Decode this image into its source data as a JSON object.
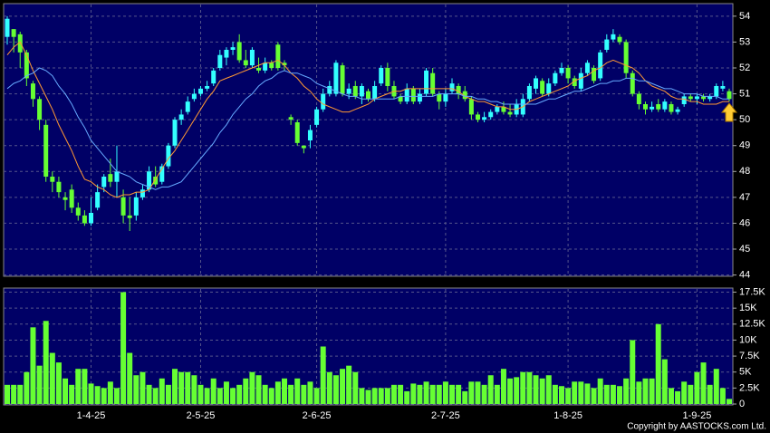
{
  "chart_data": [
    {
      "type": "candlestick",
      "up_color": "#33ffff",
      "down_color": "#66ff33",
      "grid": true,
      "ylim": [
        43.95,
        54.45
      ],
      "yticks": [
        44,
        45,
        46,
        47,
        48,
        49,
        50,
        51,
        52,
        53,
        54
      ],
      "open": [
        53.2,
        53.5,
        53.3,
        52.6,
        51.4,
        50.8,
        49.8,
        47.8,
        47.6,
        47.0,
        47.3,
        46.6,
        46.3,
        46.0,
        46.6,
        47.4,
        47.9,
        47.6,
        47.0,
        46.3,
        46.3,
        47.0,
        47.3,
        47.8,
        47.6,
        48.2,
        49.0,
        50.0,
        50.3,
        50.8,
        51.0,
        51.2,
        51.4,
        52.0,
        52.4,
        52.7,
        53.0,
        52.3,
        52.1,
        52.0,
        51.9,
        52.2,
        52.9,
        52.2,
        50.1,
        49.9,
        49.0,
        49.2,
        49.8,
        50.4,
        51.0,
        51.0,
        52.1,
        51.0,
        51.3,
        50.9,
        51.1,
        50.8,
        51.4,
        52.0,
        51.3,
        50.9,
        50.7,
        51.2,
        50.7,
        51.0,
        51.8,
        51.0,
        50.7,
        51.1,
        51.3,
        51.1,
        50.8,
        50.2,
        50.0,
        50.1,
        50.3,
        50.5,
        50.3,
        50.2,
        50.2,
        50.8,
        51.2,
        51.5,
        51.0,
        51.4,
        51.8,
        52.0,
        51.6,
        51.2,
        51.8,
        52.0,
        51.6,
        52.7,
        53.1,
        53.2,
        53.0,
        51.8,
        51.0,
        50.6,
        50.4,
        50.6,
        50.4,
        50.6,
        50.3,
        50.6,
        50.9,
        50.8,
        50.9,
        50.8,
        50.9,
        51.2,
        51.1
      ],
      "close": [
        53.9,
        53.2,
        52.6,
        51.6,
        50.8,
        50.0,
        47.8,
        47.6,
        47.2,
        46.9,
        46.6,
        46.3,
        46.0,
        46.4,
        47.2,
        47.8,
        47.6,
        48.0,
        46.3,
        46.2,
        47.0,
        47.3,
        48.0,
        47.5,
        48.2,
        49.0,
        50.0,
        50.2,
        50.7,
        51.0,
        51.2,
        51.3,
        51.9,
        52.5,
        52.7,
        52.8,
        52.3,
        52.1,
        52.7,
        51.9,
        52.2,
        52.0,
        52.0,
        52.1,
        50.0,
        49.1,
        48.9,
        49.6,
        50.4,
        51.0,
        51.3,
        52.2,
        51.0,
        51.2,
        50.9,
        51.3,
        50.8,
        51.3,
        52.0,
        51.3,
        50.9,
        50.7,
        51.2,
        50.7,
        51.0,
        51.9,
        51.0,
        50.7,
        51.0,
        51.4,
        51.0,
        50.8,
        50.2,
        50.0,
        50.1,
        50.3,
        50.5,
        50.3,
        50.2,
        50.6,
        50.8,
        51.3,
        51.6,
        51.0,
        51.4,
        51.8,
        52.0,
        51.6,
        51.3,
        51.8,
        52.2,
        51.5,
        52.6,
        53.1,
        53.3,
        53.0,
        51.8,
        51.0,
        50.6,
        50.4,
        50.5,
        50.4,
        50.7,
        50.3,
        50.4,
        50.9,
        50.8,
        50.9,
        50.8,
        50.9,
        51.3,
        51.3,
        50.8
      ],
      "high": [
        54.0,
        53.5,
        53.4,
        52.7,
        51.5,
        50.9,
        50.0,
        48.0,
        47.8,
        47.2,
        47.5,
        46.8,
        46.5,
        47.0,
        47.5,
        47.9,
        48.5,
        49.0,
        47.3,
        47.0,
        47.2,
        47.5,
        48.2,
        48.2,
        48.3,
        49.1,
        50.1,
        50.4,
        50.9,
        51.2,
        51.3,
        51.5,
        52.0,
        52.7,
        52.8,
        53.0,
        53.3,
        52.7,
        52.8,
        52.4,
        52.4,
        52.3,
        53.0,
        52.3,
        50.2,
        50.0,
        49.0,
        49.8,
        50.5,
        51.2,
        51.5,
        52.3,
        52.2,
        51.4,
        51.5,
        51.4,
        51.2,
        51.5,
        52.1,
        52.2,
        51.5,
        51.0,
        51.4,
        51.3,
        51.2,
        52.0,
        52.0,
        51.1,
        51.2,
        51.6,
        51.4,
        51.3,
        50.9,
        50.3,
        50.3,
        50.4,
        50.6,
        50.7,
        50.6,
        50.8,
        51.0,
        51.4,
        51.7,
        51.6,
        51.6,
        51.9,
        52.2,
        52.1,
        51.7,
        52.0,
        52.3,
        52.1,
        52.7,
        53.3,
        53.5,
        53.3,
        53.1,
        51.9,
        51.1,
        50.7,
        50.7,
        50.8,
        50.8,
        50.7,
        50.5,
        51.0,
        51.0,
        51.0,
        51.0,
        51.0,
        51.4,
        51.5,
        51.2
      ],
      "low": [
        52.9,
        52.6,
        52.0,
        51.3,
        50.5,
        49.6,
        47.6,
        47.2,
        47.0,
        46.5,
        46.4,
        46.1,
        45.9,
        45.9,
        46.5,
        47.2,
        47.4,
        47.0,
        46.0,
        45.7,
        46.1,
        46.9,
        47.2,
        47.4,
        47.5,
        48.1,
        48.9,
        49.8,
        50.2,
        50.7,
        50.9,
        51.1,
        51.3,
        51.9,
        52.1,
        52.5,
        52.2,
        52.0,
        52.0,
        51.8,
        51.8,
        51.9,
        51.9,
        51.9,
        49.8,
        49.0,
        48.7,
        48.9,
        49.7,
        50.3,
        50.9,
        50.9,
        50.9,
        50.8,
        50.8,
        50.6,
        50.7,
        50.7,
        51.3,
        51.1,
        50.8,
        50.6,
        50.6,
        50.6,
        50.6,
        50.9,
        50.9,
        50.4,
        50.5,
        51.0,
        50.8,
        50.7,
        50.0,
        49.9,
        49.9,
        50.0,
        50.2,
        50.2,
        50.1,
        50.1,
        50.1,
        50.7,
        51.0,
        50.9,
        50.9,
        51.3,
        51.7,
        51.4,
        51.2,
        51.1,
        51.7,
        51.4,
        51.5,
        52.6,
        53.0,
        52.9,
        51.6,
        50.9,
        50.4,
        50.2,
        50.3,
        50.3,
        50.3,
        50.2,
        50.2,
        50.5,
        50.7,
        50.6,
        50.7,
        50.7,
        50.8,
        51.1,
        50.7
      ],
      "lines": [
        {
          "color": "#ff9933",
          "values": [
            52.5,
            52.8,
            53.0,
            52.5,
            51.9,
            51.4,
            50.9,
            50.4,
            49.8,
            49.3,
            48.8,
            48.2,
            47.7,
            47.6,
            47.4,
            47.3,
            47.1,
            47.0,
            47.1,
            47.1,
            47.2,
            47.2,
            47.3,
            47.7,
            48.1,
            48.5,
            48.8,
            49.2,
            49.6,
            50.0,
            50.4,
            50.8,
            51.1,
            51.5,
            51.6,
            51.7,
            51.8,
            51.9,
            52.0,
            52.1,
            52.2,
            52.2,
            52.3,
            52.1,
            51.8,
            51.6,
            51.3,
            51.1,
            50.8,
            50.6,
            50.5,
            50.4,
            50.3,
            50.3,
            50.4,
            50.5,
            50.6,
            50.8,
            50.9,
            51.0,
            51.1,
            51.1,
            51.2,
            51.2,
            51.2,
            51.2,
            51.2,
            51.2,
            51.2,
            51.2,
            51.1,
            50.9,
            50.8,
            50.7,
            50.7,
            50.6,
            50.5,
            50.5,
            50.4,
            50.4,
            50.5,
            50.7,
            50.8,
            50.9,
            51.0,
            51.1,
            51.2,
            51.3,
            51.5,
            51.6,
            51.7,
            51.9,
            52.0,
            52.2,
            52.3,
            52.2,
            52.1,
            52.0,
            51.8,
            51.5,
            51.3,
            51.2,
            51.1,
            50.9,
            50.8,
            50.8,
            50.7,
            50.7,
            50.6,
            50.6,
            50.6,
            50.7,
            50.7
          ]
        },
        {
          "color": "#66aaff",
          "values": [
            51.2,
            51.4,
            51.5,
            51.7,
            51.8,
            52.0,
            51.9,
            51.7,
            51.3,
            51.0,
            50.6,
            50.1,
            49.7,
            49.2,
            48.9,
            48.6,
            48.3,
            48.0,
            47.9,
            47.8,
            47.6,
            47.5,
            47.4,
            47.3,
            47.4,
            47.4,
            47.5,
            47.6,
            47.9,
            48.2,
            48.5,
            48.8,
            49.1,
            49.5,
            49.8,
            50.2,
            50.5,
            50.8,
            51.0,
            51.3,
            51.5,
            51.6,
            51.8,
            51.9,
            51.8,
            51.8,
            51.7,
            51.6,
            51.4,
            51.3,
            51.2,
            51.1,
            51.0,
            50.9,
            50.9,
            50.8,
            50.8,
            50.8,
            50.8,
            50.8,
            50.8,
            50.9,
            50.9,
            50.9,
            50.9,
            50.9,
            50.9,
            51.0,
            51.0,
            51.0,
            51.0,
            50.9,
            50.9,
            50.8,
            50.8,
            50.7,
            50.7,
            50.6,
            50.6,
            50.6,
            50.6,
            50.6,
            50.6,
            50.7,
            50.8,
            50.8,
            50.9,
            51.0,
            51.1,
            51.1,
            51.2,
            51.3,
            51.4,
            51.4,
            51.5,
            51.5,
            51.6,
            51.6,
            51.5,
            51.5,
            51.4,
            51.3,
            51.2,
            51.2,
            51.1,
            51.0,
            51.0,
            51.0,
            50.9,
            50.9,
            50.9,
            50.8,
            50.8
          ]
        }
      ]
    },
    {
      "type": "bar",
      "color": "#66ff33",
      "grid": true,
      "ylim": [
        0,
        18000
      ],
      "yticks": [
        0,
        {
          "value": 2500,
          "label": "2.5K"
        },
        {
          "value": 5000,
          "label": "5K"
        },
        {
          "value": 7500,
          "label": "7.5K"
        },
        {
          "value": 10000,
          "label": "10K"
        },
        {
          "value": 12500,
          "label": "12.5K"
        },
        {
          "value": 15000,
          "label": "15K"
        },
        {
          "value": 17500,
          "label": "17.5K"
        }
      ],
      "categories": [
        null,
        null,
        null,
        null,
        null,
        null,
        null,
        null,
        null,
        null,
        null,
        null,
        null,
        "1-4-25",
        null,
        null,
        null,
        null,
        null,
        null,
        null,
        null,
        null,
        null,
        null,
        null,
        null,
        null,
        null,
        null,
        "2-5-25",
        null,
        null,
        null,
        null,
        null,
        null,
        null,
        null,
        null,
        null,
        null,
        null,
        null,
        null,
        null,
        null,
        null,
        "2-6-25",
        null,
        null,
        null,
        null,
        null,
        null,
        null,
        null,
        null,
        null,
        null,
        null,
        null,
        null,
        null,
        null,
        null,
        null,
        null,
        "2-7-25",
        null,
        null,
        null,
        null,
        null,
        null,
        null,
        null,
        null,
        null,
        null,
        null,
        null,
        null,
        null,
        null,
        null,
        null,
        "1-8-25",
        null,
        null,
        null,
        null,
        null,
        null,
        null,
        null,
        null,
        null,
        null,
        null,
        null,
        null,
        null,
        null,
        null,
        null,
        null,
        "1-9-25",
        null,
        null,
        null,
        null,
        null
      ],
      "values": [
        3000,
        3000,
        3000,
        5000,
        12000,
        6000,
        13000,
        8000,
        6500,
        4000,
        3000,
        5500,
        5500,
        3200,
        2800,
        2500,
        3500,
        2500,
        17500,
        8000,
        4500,
        5000,
        3000,
        2500,
        4000,
        3000,
        5500,
        5000,
        5000,
        4500,
        3000,
        2500,
        4000,
        2500,
        3500,
        2500,
        3000,
        4000,
        5000,
        4500,
        3000,
        2500,
        3500,
        4000,
        3000,
        4000,
        3000,
        3500,
        2500,
        9000,
        5000,
        4500,
        5500,
        6000,
        5000,
        2500,
        2200,
        2500,
        2500,
        2500,
        3000,
        3000,
        2000,
        3200,
        3000,
        3500,
        3000,
        3000,
        3500,
        3000,
        3000,
        2000,
        3500,
        3500,
        3000,
        4500,
        3000,
        5500,
        4000,
        4200,
        5000,
        5000,
        4500,
        4000,
        4500,
        3000,
        2800,
        2500,
        3500,
        3500,
        3200,
        2500,
        4000,
        3000,
        3000,
        2800,
        4000,
        10000,
        3500,
        4000,
        4000,
        12500,
        7000,
        2500,
        2000,
        3500,
        3000,
        5000,
        6500,
        3000,
        5500,
        2500,
        800
      ]
    }
  ],
  "copyright": "Copyright by AASTOCKS.com Ltd."
}
